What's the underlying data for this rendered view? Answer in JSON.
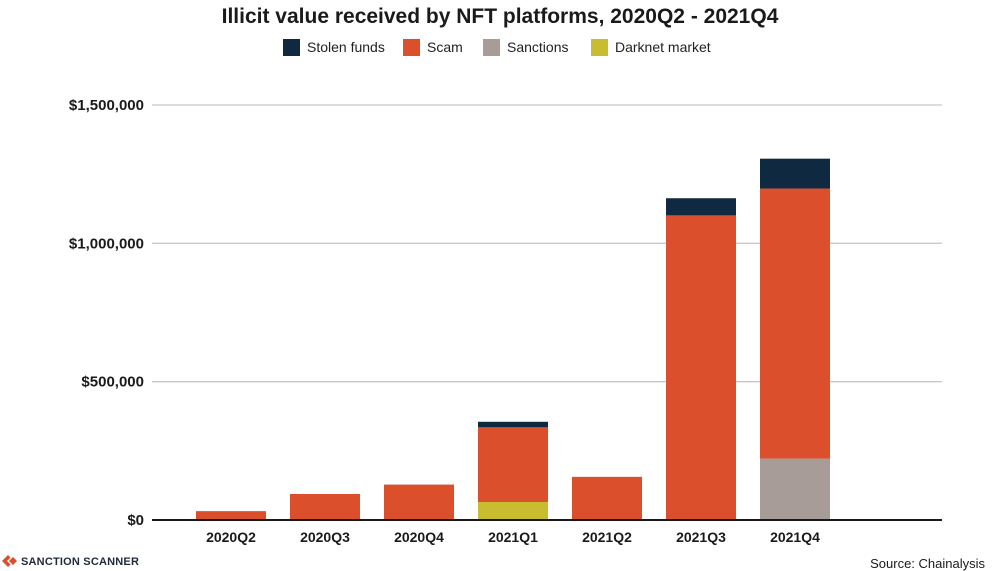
{
  "chart_data": {
    "type": "bar",
    "stacked": true,
    "title": "Illicit value received by NFT platforms, 2020Q2 - 2021Q4",
    "categories": [
      "2020Q2",
      "2020Q3",
      "2020Q4",
      "2021Q1",
      "2021Q2",
      "2021Q3",
      "2021Q4"
    ],
    "series": [
      {
        "name": "Darknet market",
        "color": "#c8bc2f",
        "values": [
          0,
          0,
          0,
          65000,
          0,
          0,
          0
        ]
      },
      {
        "name": "Sanctions",
        "color": "#a89c99",
        "values": [
          0,
          0,
          0,
          0,
          0,
          0,
          222000
        ]
      },
      {
        "name": "Scam",
        "color": "#dc4f2c",
        "values": [
          32000,
          94000,
          128000,
          270000,
          156000,
          1101000,
          976000
        ]
      },
      {
        "name": "Stolen funds",
        "color": "#0f2940",
        "values": [
          0,
          0,
          0,
          20000,
          0,
          62000,
          108000
        ]
      }
    ],
    "legend_order": [
      "Stolen funds",
      "Scam",
      "Sanctions",
      "Darknet market"
    ],
    "legend_position": "top",
    "ylim": [
      0,
      1500000
    ],
    "yticks": [
      0,
      500000,
      1000000,
      1500000
    ],
    "ytick_labels": [
      "$0",
      "$500,000",
      "$1,000,000",
      "$1,500,000"
    ],
    "grid": true,
    "xlabel": "",
    "ylabel": ""
  },
  "source": "Source: Chainalysis",
  "brand": {
    "name": "SANCTION SCANNER",
    "icon": "sanction-scanner-logo-icon",
    "color": "#dc4f2c"
  }
}
